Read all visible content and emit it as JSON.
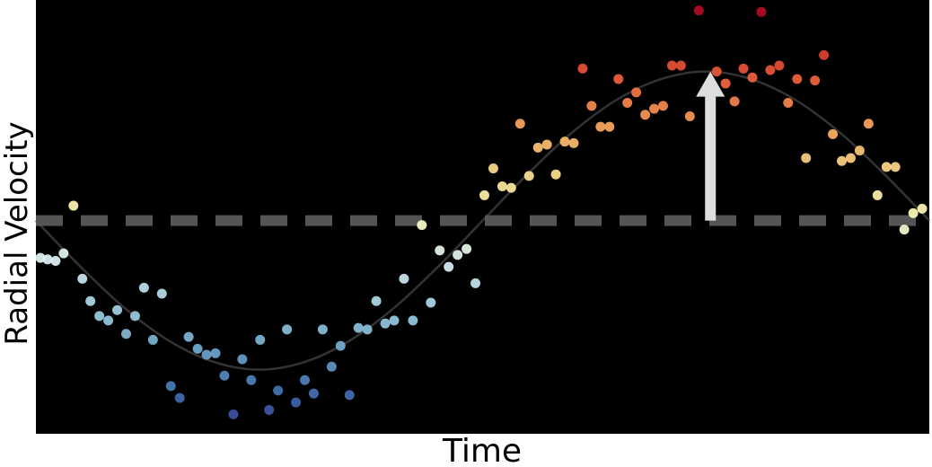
{
  "chart_data": {
    "type": "scatter",
    "x_label": "Time",
    "y_label": "Radial Velocity",
    "xlim": [
      0,
      10
    ],
    "ylim": [
      -1.43,
      1.48
    ],
    "grid": false,
    "background": "#000000",
    "colormap": [
      "#313695",
      "#4575b4",
      "#74add1",
      "#abd9e9",
      "#e0f3f8",
      "#ffffbf",
      "#fee090",
      "#fdae61",
      "#f46d43",
      "#d73027",
      "#a50026"
    ],
    "baseline": {
      "value": 0,
      "color": "#555555"
    },
    "arrow": {
      "x": 7.55,
      "from": 0,
      "to": 1,
      "color": "#dddddd"
    },
    "fit": {
      "color": "#333333",
      "x": [
        0,
        0.5,
        1,
        1.5,
        2,
        2.5,
        3,
        3.5,
        4,
        4.5,
        5,
        5.5,
        6,
        6.5,
        7,
        7.5,
        8,
        8.5,
        9,
        9.5,
        10
      ],
      "values": [
        0,
        -0.31,
        -0.59,
        -0.81,
        -0.95,
        -1,
        -0.95,
        -0.81,
        -0.59,
        -0.31,
        0,
        0.31,
        0.59,
        0.81,
        0.95,
        1,
        0.95,
        0.81,
        0.59,
        0.31,
        0
      ]
    },
    "x": [
      0.05,
      0.13,
      0.22,
      0.31,
      0.42,
      0.52,
      0.61,
      0.71,
      0.81,
      0.91,
      1.01,
      1.11,
      1.21,
      1.31,
      1.41,
      1.51,
      1.61,
      1.71,
      1.81,
      1.91,
      2.01,
      2.11,
      2.21,
      2.31,
      2.41,
      2.51,
      2.61,
      2.71,
      2.81,
      2.91,
      3.01,
      3.11,
      3.21,
      3.31,
      3.41,
      3.51,
      3.61,
      3.71,
      3.81,
      3.91,
      4.01,
      4.12,
      4.22,
      4.32,
      4.42,
      4.52,
      4.62,
      4.72,
      4.82,
      4.92,
      5.02,
      5.12,
      5.22,
      5.32,
      5.42,
      5.52,
      5.62,
      5.72,
      5.82,
      5.92,
      6.02,
      6.12,
      6.22,
      6.32,
      6.42,
      6.52,
      6.62,
      6.72,
      6.82,
      6.92,
      7.02,
      7.12,
      7.22,
      7.32,
      7.42,
      7.52,
      7.62,
      7.72,
      7.82,
      7.92,
      8.02,
      8.12,
      8.22,
      8.32,
      8.42,
      8.52,
      8.62,
      8.72,
      8.82,
      8.92,
      9.02,
      9.12,
      9.22,
      9.32,
      9.42,
      9.52,
      9.62,
      9.72,
      9.82,
      9.92
    ],
    "values": [
      -0.25,
      -0.26,
      -0.27,
      -0.22,
      0.1,
      -0.39,
      -0.54,
      -0.64,
      -0.67,
      -0.6,
      -0.76,
      -0.64,
      -0.45,
      -0.8,
      -0.49,
      -1.11,
      -1.19,
      -0.78,
      -0.86,
      -0.9,
      -0.89,
      -1.04,
      -1.3,
      -0.93,
      -1.07,
      -0.8,
      -1.27,
      -1.14,
      -0.73,
      -1.22,
      -1.07,
      -1.16,
      -0.73,
      -0.98,
      -0.84,
      -1.17,
      -0.72,
      -0.73,
      -0.54,
      -0.69,
      -0.67,
      -0.39,
      -0.67,
      -0.03,
      -0.55,
      -0.2,
      -0.31,
      -0.23,
      -0.19,
      -0.42,
      0.17,
      0.35,
      0.23,
      0.22,
      0.65,
      0.3,
      0.49,
      0.51,
      0.31,
      0.53,
      0.52,
      1.02,
      0.77,
      0.63,
      0.63,
      0.95,
      0.79,
      0.86,
      0.71,
      0.75,
      0.77,
      1.04,
      1.04,
      0.7,
      1.41,
      0.88,
      1.0,
      0.92,
      0.8,
      1.02,
      0.96,
      1.4,
      1.01,
      1.04,
      0.79,
      0.95,
      0.42,
      0.94,
      1.11,
      0.58,
      0.4,
      0.42,
      0.47,
      0.65,
      0.17,
      0.36,
      0.36,
      -0.06,
      0.05,
      0.08
    ]
  }
}
